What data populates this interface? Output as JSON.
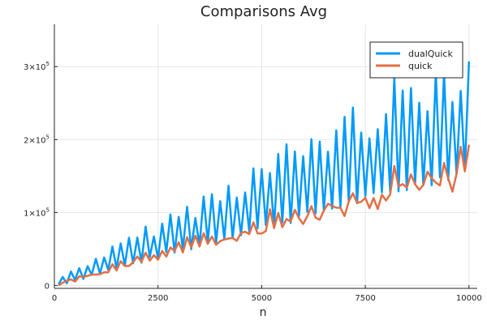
{
  "chart_data": {
    "type": "line",
    "title": "Comparisons Avg",
    "xlabel": "n",
    "ylabel": "",
    "xlim": [
      0,
      10200
    ],
    "ylim": [
      -4000,
      358000
    ],
    "x_ticks": [
      {
        "value": 0,
        "label": "0"
      },
      {
        "value": 2500,
        "label": "2500"
      },
      {
        "value": 5000,
        "label": "5000"
      },
      {
        "value": 7500,
        "label": "7500"
      },
      {
        "value": 10000,
        "label": "10000"
      }
    ],
    "y_ticks": [
      {
        "value": 0,
        "mantissa": "0",
        "exponent": ""
      },
      {
        "value": 100000,
        "mantissa": "1×10",
        "exponent": "5"
      },
      {
        "value": 200000,
        "mantissa": "2×10",
        "exponent": "5"
      },
      {
        "value": 300000,
        "mantissa": "3×10",
        "exponent": "5"
      }
    ],
    "grid": true,
    "legend_position": "top-right",
    "x_sampling": {
      "start": 100,
      "stop": 10000,
      "step": 100
    },
    "series": [
      {
        "name": "dualQuick",
        "color": "#009AFA",
        "pattern": "alternating",
        "low": [
          1500,
          10000
        ],
        "low_end": 158000,
        "high_start": 10000,
        "high_end": 348000
      },
      {
        "name": "quick",
        "color": "#E26F46",
        "pattern": "alternating",
        "low": [
          1500,
          12000
        ],
        "low_end": 155000,
        "high_start": 3000,
        "high_end": 205000
      }
    ]
  }
}
